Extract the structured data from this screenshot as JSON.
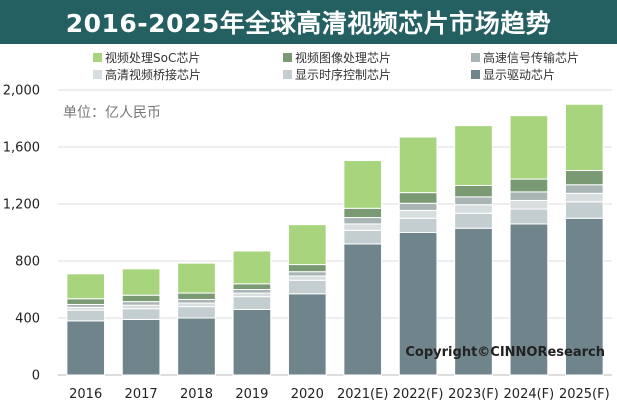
{
  "chart_data": {
    "type": "bar",
    "stacked": true,
    "title": "2016-2025年全球高清视频芯片市场趋势",
    "unit_label": "单位：亿人民币",
    "copyright": "Copyright©CINNOResearch",
    "categories": [
      "2016",
      "2017",
      "2018",
      "2019",
      "2020",
      "2021(E)",
      "2022(F)",
      "2023(F)",
      "2024(F)",
      "2025(F)"
    ],
    "ylim": [
      0,
      2000
    ],
    "yticks": [
      0,
      400,
      800,
      1200,
      1600,
      2000
    ],
    "ytick_labels": [
      "0",
      "400",
      "800",
      "1,200",
      "1,600",
      "2,000"
    ],
    "grid": true,
    "legend_placement": "top",
    "series": [
      {
        "name": "显示驱动芯片",
        "color": "#6f858b",
        "values": [
          380,
          390,
          400,
          460,
          570,
          920,
          1000,
          1030,
          1060,
          1100
        ]
      },
      {
        "name": "显示时序控制芯片",
        "color": "#c4ced0",
        "values": [
          75,
          75,
          80,
          90,
          95,
          95,
          100,
          105,
          105,
          115
        ]
      },
      {
        "name": "高清视频桥接芯片",
        "color": "#d8dedf",
        "values": [
          20,
          25,
          25,
          25,
          30,
          45,
          55,
          60,
          60,
          60
        ]
      },
      {
        "name": "高速信号传输芯片",
        "color": "#a9b5b4",
        "values": [
          20,
          25,
          25,
          25,
          30,
          45,
          50,
          55,
          60,
          60
        ]
      },
      {
        "name": "视频图像处理芯片",
        "color": "#7a9a74",
        "values": [
          40,
          45,
          45,
          40,
          50,
          65,
          75,
          80,
          90,
          100
        ]
      },
      {
        "name": "视频处理SoC芯片",
        "color": "#a8d47e",
        "values": [
          175,
          185,
          210,
          230,
          280,
          335,
          390,
          420,
          445,
          465
        ]
      }
    ],
    "legend_order": [
      "视频处理SoC芯片",
      "视频图像处理芯片",
      "高速信号传输芯片",
      "高清视频桥接芯片",
      "显示时序控制芯片",
      "显示驱动芯片"
    ]
  }
}
